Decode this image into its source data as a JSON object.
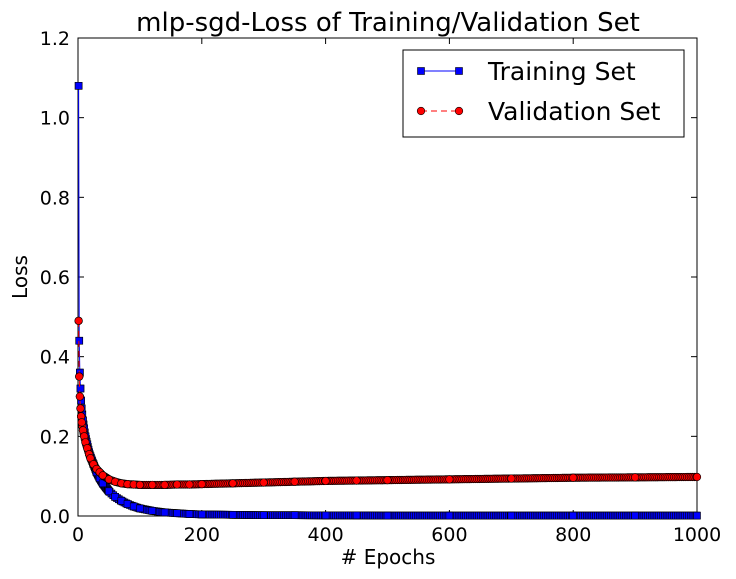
{
  "chart_data": {
    "type": "line",
    "title": "mlp-sgd-Loss of Training/Validation Set",
    "xlabel": "# Epochs",
    "ylabel": "Loss",
    "xlim": [
      0,
      1000
    ],
    "ylim": [
      0,
      1.2
    ],
    "x_ticks": [
      "0",
      "200",
      "400",
      "600",
      "800",
      "1000"
    ],
    "y_ticks": [
      "0.0",
      "0.2",
      "0.4",
      "0.6",
      "0.8",
      "1.0",
      "1.2"
    ],
    "grid": false,
    "legend_position": "top-right",
    "series": [
      {
        "name": "Training Set",
        "color": "#0000ff",
        "marker": "square",
        "line_style": "solid",
        "x": [
          1,
          2,
          3,
          4,
          5,
          6,
          8,
          10,
          12,
          15,
          18,
          20,
          25,
          30,
          35,
          40,
          50,
          60,
          70,
          80,
          90,
          100,
          120,
          140,
          160,
          180,
          200,
          250,
          300,
          350,
          400,
          450,
          500,
          600,
          700,
          800,
          900,
          1000
        ],
        "values": [
          1.08,
          0.44,
          0.36,
          0.32,
          0.29,
          0.27,
          0.24,
          0.22,
          0.2,
          0.18,
          0.16,
          0.15,
          0.13,
          0.11,
          0.095,
          0.082,
          0.062,
          0.048,
          0.038,
          0.03,
          0.024,
          0.019,
          0.013,
          0.009,
          0.007,
          0.005,
          0.004,
          0.003,
          0.002,
          0.002,
          0.0015,
          0.0015,
          0.001,
          0.001,
          0.001,
          0.001,
          0.001,
          0.001
        ]
      },
      {
        "name": "Validation Set",
        "color": "#ff0000",
        "marker": "circle",
        "line_style": "dashed",
        "x": [
          1,
          2,
          3,
          4,
          5,
          6,
          8,
          10,
          12,
          15,
          18,
          20,
          25,
          30,
          35,
          40,
          50,
          60,
          70,
          80,
          90,
          100,
          120,
          140,
          160,
          180,
          200,
          250,
          300,
          350,
          400,
          450,
          500,
          600,
          700,
          800,
          900,
          1000
        ],
        "values": [
          0.49,
          0.35,
          0.3,
          0.27,
          0.25,
          0.235,
          0.215,
          0.2,
          0.185,
          0.17,
          0.155,
          0.145,
          0.13,
          0.118,
          0.11,
          0.102,
          0.092,
          0.086,
          0.082,
          0.08,
          0.079,
          0.078,
          0.078,
          0.078,
          0.079,
          0.079,
          0.08,
          0.082,
          0.084,
          0.086,
          0.088,
          0.089,
          0.09,
          0.092,
          0.094,
          0.096,
          0.097,
          0.098
        ]
      }
    ]
  }
}
